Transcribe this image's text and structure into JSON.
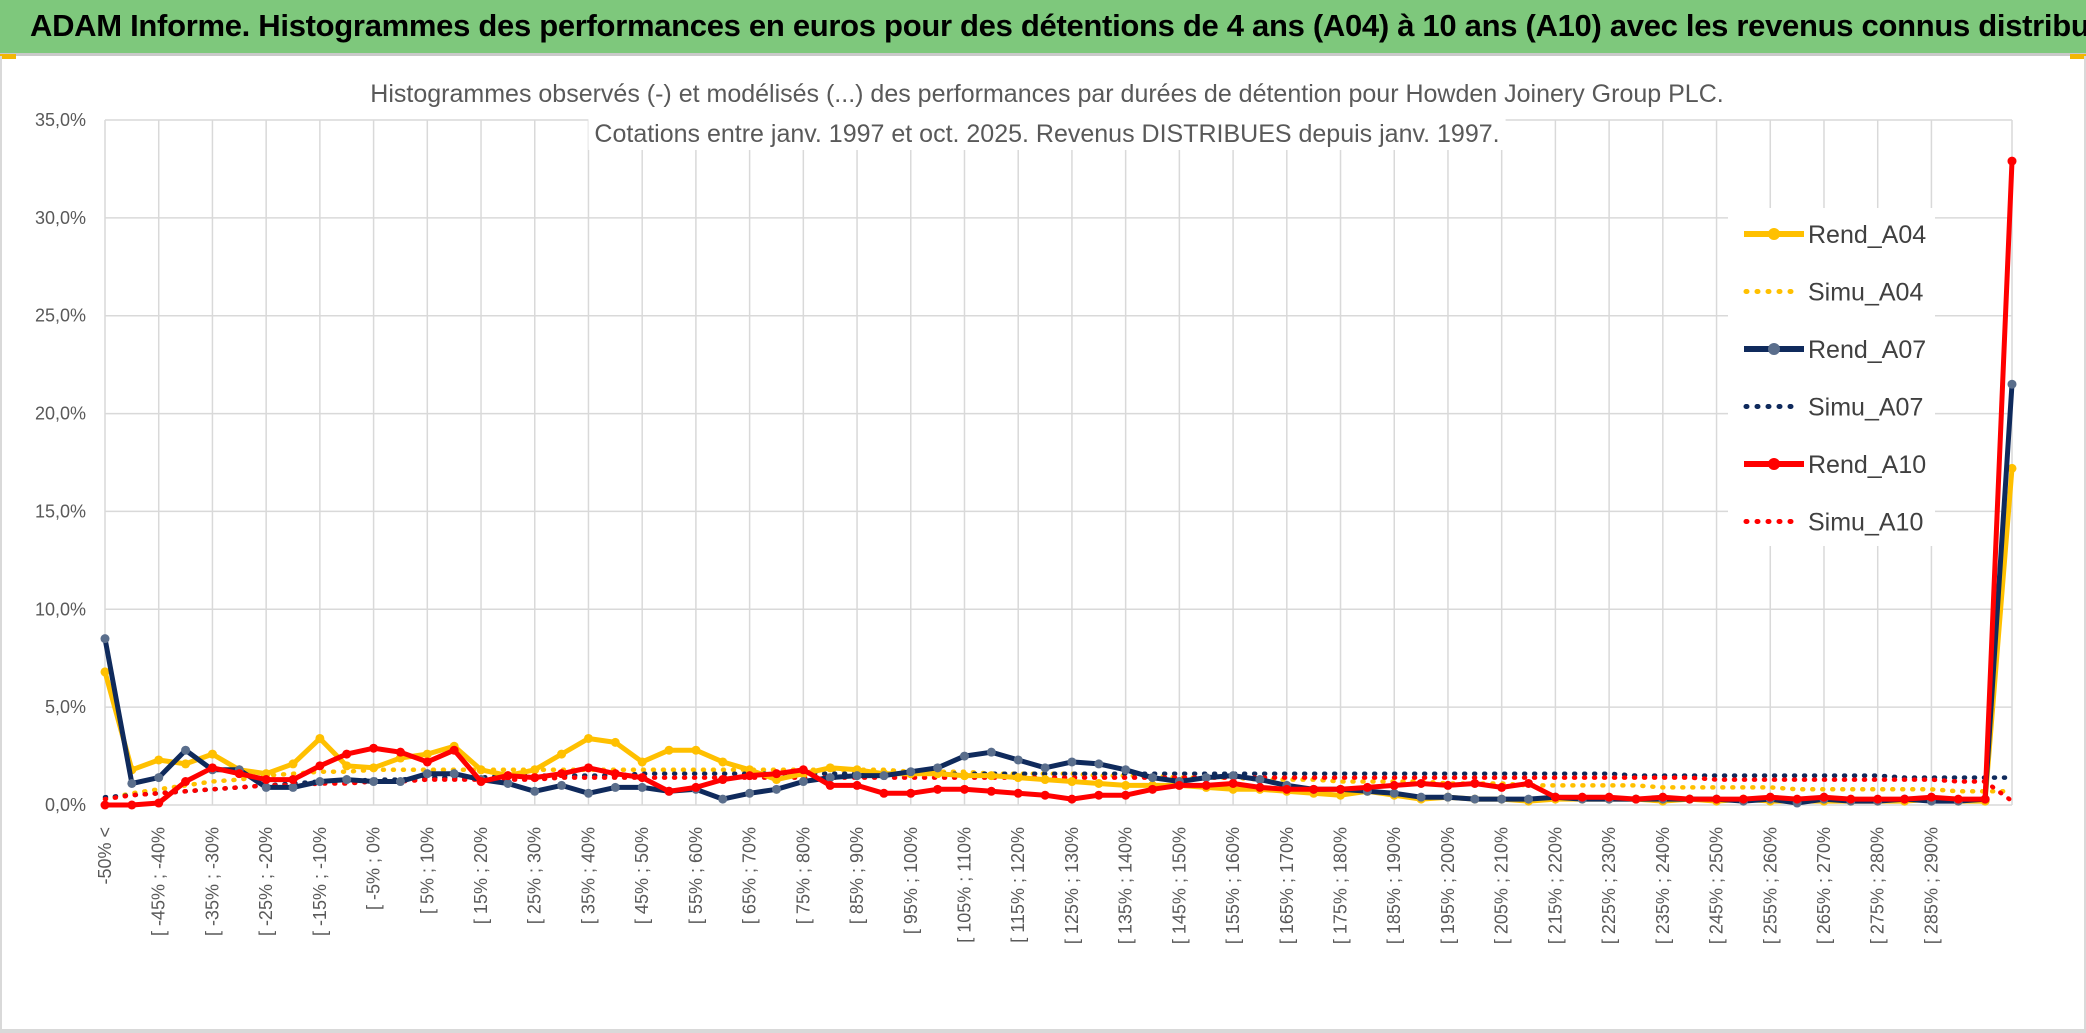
{
  "header": {
    "title": "ADAM Informe. Histogrammes des performances en euros pour des détentions de 4 ans (A04) à 10 ans (A10) avec les revenus connus distribués"
  },
  "colors": {
    "banner": "#7ec87c",
    "A04": "#ffc000",
    "A07": "#0f2a5c",
    "A10": "#ff0000",
    "grid": "#d9d9d9"
  },
  "chart_data": {
    "type": "line",
    "title": [
      "Histogrammes observés (-) et modélisés (...) des performances par durées de détention pour Howden Joinery Group PLC.",
      "Cotations entre janv. 1997 et oct. 2025.  Revenus DISTRIBUES depuis janv. 1997."
    ],
    "ylim": [
      0,
      35
    ],
    "y_tick_labels": [
      "0,0%",
      "5,0%",
      "10,0%",
      "15,0%",
      "20,0%",
      "25,0%",
      "30,0%",
      "35,0%"
    ],
    "grid": true,
    "legend_position": "right",
    "x_labels": [
      "-50% <",
      "[ -45% ; -40%",
      "[ -35% ; -30%",
      "[ -25% ; -20%",
      "[ -15% ; -10%",
      "[ -5% ; 0%",
      "[ 5% ; 10%",
      "[ 15% ; 20%",
      "[ 25% ; 30%",
      "[ 35% ; 40%",
      "[ 45% ; 50%",
      "[ 55% ; 60%",
      "[ 65% ; 70%",
      "[ 75% ; 80%",
      "[ 85% ; 90%",
      "[ 95% ; 100%",
      "[ 105% ; 110%",
      "[ 115% ; 120%",
      "[ 125% ; 130%",
      "[ 135% ; 140%",
      "[ 145% ; 150%",
      "[ 155% ; 160%",
      "[ 165% ; 170%",
      "[ 175% ; 180%",
      "[ 185% ; 190%",
      "[ 195% ; 200%",
      "[ 205% ; 210%",
      "[ 215% ; 220%",
      "[ 225% ; 230%",
      "[ 235% ; 240%",
      "[ 245% ; 250%",
      "[ 255% ; 260%",
      "[ 265% ; 270%",
      "[ 275% ; 280%",
      "[ 285% ; 290%"
    ],
    "series": [
      {
        "name": "Rend_A04",
        "style": "solid",
        "color": "#ffc000",
        "values": [
          6.8,
          1.8,
          2.3,
          2.1,
          2.6,
          1.8,
          1.6,
          2.1,
          3.4,
          2.0,
          1.9,
          2.4,
          2.6,
          3.0,
          1.8,
          1.5,
          1.8,
          2.6,
          3.4,
          3.2,
          2.2,
          2.8,
          2.8,
          2.2,
          1.8,
          1.3,
          1.6,
          1.9,
          1.8,
          1.6,
          1.6,
          1.6,
          1.5,
          1.5,
          1.4,
          1.3,
          1.2,
          1.1,
          1.0,
          1.0,
          1.0,
          0.9,
          0.8,
          0.8,
          0.7,
          0.6,
          0.5,
          0.7,
          0.5,
          0.3,
          0.4,
          0.3,
          0.3,
          0.2,
          0.3,
          0.3,
          0.3,
          0.3,
          0.2,
          0.3,
          0.2,
          0.3,
          0.2,
          0.2,
          0.2,
          0.2,
          0.2,
          0.2,
          0.3,
          0.2,
          0.2,
          17.2
        ]
      },
      {
        "name": "Simu_A04",
        "style": "dotted",
        "color": "#ffc000",
        "values": [
          0.3,
          0.6,
          0.8,
          1.0,
          1.2,
          1.3,
          1.5,
          1.6,
          1.7,
          1.7,
          1.8,
          1.8,
          1.8,
          1.8,
          1.8,
          1.8,
          1.8,
          1.8,
          1.8,
          1.8,
          1.8,
          1.8,
          1.8,
          1.8,
          1.8,
          1.8,
          1.8,
          1.8,
          1.8,
          1.8,
          1.7,
          1.7,
          1.7,
          1.6,
          1.6,
          1.6,
          1.6,
          1.5,
          1.5,
          1.5,
          1.4,
          1.4,
          1.4,
          1.3,
          1.3,
          1.3,
          1.2,
          1.2,
          1.2,
          1.2,
          1.1,
          1.1,
          1.1,
          1.0,
          1.0,
          1.0,
          1.0,
          1.0,
          0.9,
          0.9,
          0.9,
          0.9,
          0.9,
          0.8,
          0.8,
          0.8,
          0.8,
          0.8,
          0.8,
          0.7,
          0.7,
          0.7
        ]
      },
      {
        "name": "Rend_A07",
        "style": "solid",
        "color": "#0f2a5c",
        "values": [
          8.5,
          1.1,
          1.4,
          2.8,
          1.8,
          1.8,
          0.9,
          0.9,
          1.2,
          1.3,
          1.2,
          1.2,
          1.6,
          1.6,
          1.3,
          1.1,
          0.7,
          1.0,
          0.6,
          0.9,
          0.9,
          0.7,
          0.8,
          0.3,
          0.6,
          0.8,
          1.2,
          1.4,
          1.5,
          1.5,
          1.7,
          1.9,
          2.5,
          2.7,
          2.3,
          1.9,
          2.2,
          2.1,
          1.8,
          1.4,
          1.2,
          1.4,
          1.5,
          1.3,
          1.0,
          0.8,
          0.8,
          0.7,
          0.6,
          0.4,
          0.4,
          0.3,
          0.3,
          0.3,
          0.4,
          0.3,
          0.3,
          0.3,
          0.3,
          0.3,
          0.3,
          0.2,
          0.3,
          0.1,
          0.3,
          0.2,
          0.2,
          0.3,
          0.2,
          0.2,
          0.3,
          21.5
        ]
      },
      {
        "name": "Simu_A07",
        "style": "dotted",
        "color": "#0f2a5c",
        "values": [
          0.4,
          0.5,
          0.6,
          0.7,
          0.8,
          0.9,
          1.0,
          1.1,
          1.2,
          1.2,
          1.3,
          1.3,
          1.4,
          1.4,
          1.4,
          1.5,
          1.5,
          1.5,
          1.5,
          1.5,
          1.6,
          1.6,
          1.6,
          1.6,
          1.6,
          1.6,
          1.6,
          1.6,
          1.6,
          1.6,
          1.6,
          1.6,
          1.6,
          1.6,
          1.6,
          1.6,
          1.6,
          1.6,
          1.6,
          1.6,
          1.6,
          1.6,
          1.6,
          1.6,
          1.6,
          1.6,
          1.6,
          1.6,
          1.6,
          1.6,
          1.6,
          1.6,
          1.6,
          1.6,
          1.6,
          1.6,
          1.6,
          1.5,
          1.5,
          1.5,
          1.5,
          1.5,
          1.5,
          1.5,
          1.5,
          1.5,
          1.5,
          1.4,
          1.4,
          1.4,
          1.4,
          1.4
        ]
      },
      {
        "name": "Rend_A10",
        "style": "solid",
        "color": "#ff0000",
        "values": [
          0.0,
          0.0,
          0.1,
          1.2,
          1.9,
          1.6,
          1.3,
          1.3,
          2.0,
          2.6,
          2.9,
          2.7,
          2.2,
          2.8,
          1.2,
          1.5,
          1.4,
          1.6,
          1.9,
          1.6,
          1.4,
          0.7,
          0.9,
          1.3,
          1.5,
          1.6,
          1.8,
          1.0,
          1.0,
          0.6,
          0.6,
          0.8,
          0.8,
          0.7,
          0.6,
          0.5,
          0.3,
          0.5,
          0.5,
          0.8,
          1.0,
          1.0,
          1.1,
          0.9,
          0.8,
          0.8,
          0.8,
          0.9,
          1.0,
          1.1,
          1.0,
          1.1,
          0.9,
          1.1,
          0.4,
          0.4,
          0.4,
          0.3,
          0.4,
          0.3,
          0.3,
          0.3,
          0.4,
          0.3,
          0.4,
          0.3,
          0.3,
          0.3,
          0.4,
          0.3,
          0.3,
          32.9
        ]
      },
      {
        "name": "Simu_A10",
        "style": "dotted",
        "color": "#ff0000",
        "values": [
          0.3,
          0.5,
          0.6,
          0.7,
          0.8,
          0.9,
          1.0,
          1.0,
          1.1,
          1.1,
          1.2,
          1.2,
          1.3,
          1.3,
          1.3,
          1.3,
          1.3,
          1.4,
          1.4,
          1.4,
          1.4,
          1.4,
          1.4,
          1.4,
          1.4,
          1.4,
          1.4,
          1.4,
          1.4,
          1.4,
          1.4,
          1.4,
          1.4,
          1.4,
          1.4,
          1.4,
          1.4,
          1.4,
          1.4,
          1.4,
          1.4,
          1.4,
          1.4,
          1.4,
          1.4,
          1.4,
          1.4,
          1.4,
          1.4,
          1.4,
          1.4,
          1.4,
          1.4,
          1.4,
          1.4,
          1.4,
          1.4,
          1.4,
          1.4,
          1.4,
          1.3,
          1.3,
          1.3,
          1.3,
          1.3,
          1.3,
          1.3,
          1.3,
          1.3,
          1.2,
          1.2,
          0.2
        ]
      }
    ]
  }
}
